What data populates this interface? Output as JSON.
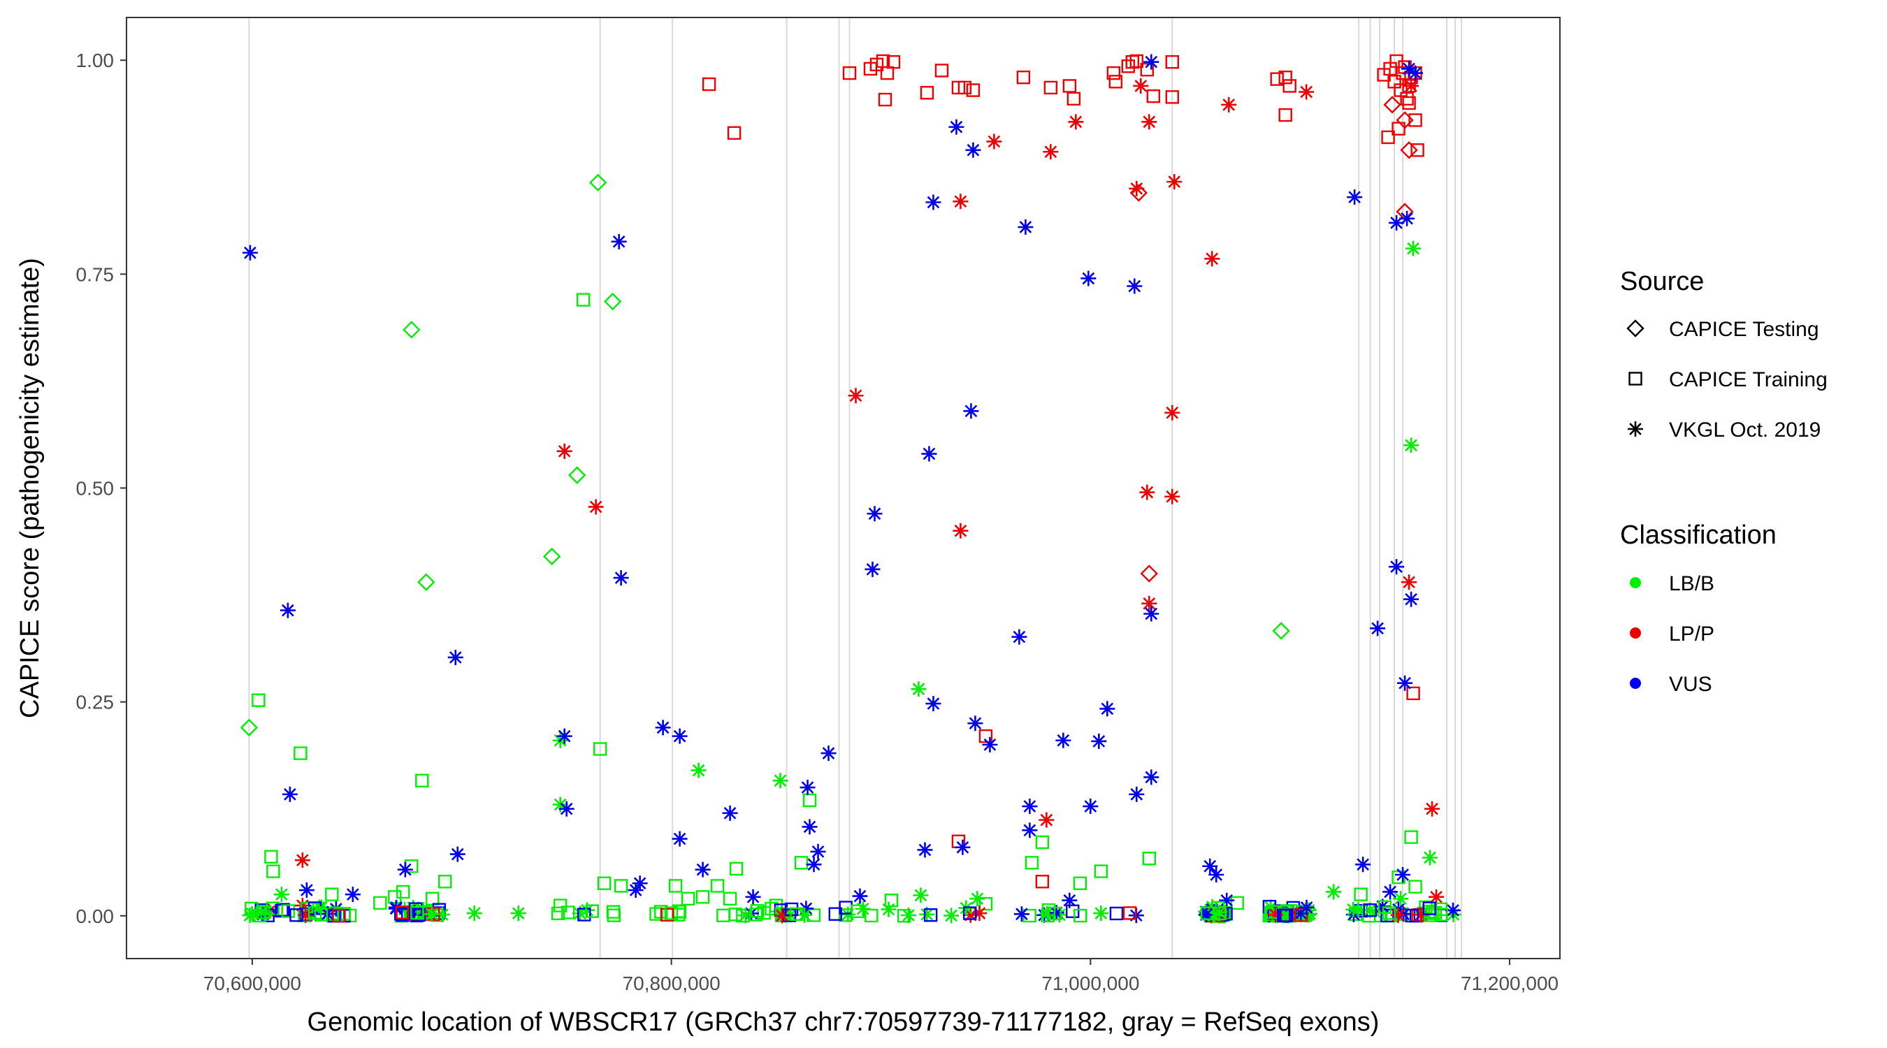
{
  "chart_data": {
    "type": "scatter",
    "title": "",
    "xlabel": "Genomic location of WBSCR17 (GRCh37 chr7:70597739-71177182, gray = RefSeq exons)",
    "ylabel": "CAPICE score (pathogenicity estimate)",
    "xlim": [
      70540000,
      71224000
    ],
    "ylim": [
      -0.05,
      1.05
    ],
    "x_ticks": [
      70600000,
      70800000,
      71000000,
      71200000
    ],
    "x_tick_labels": [
      "70,600,000",
      "70,800,000",
      "71,000,000",
      "71,200,000"
    ],
    "y_ticks": [
      0,
      0.25,
      0.5,
      0.75,
      1.0
    ],
    "y_tick_labels": [
      "0.00",
      "0.25",
      "0.50",
      "0.75",
      "1.00"
    ],
    "exon_positions": [
      70598500,
      70766000,
      70800500,
      70855000,
      70880000,
      70885000,
      71039000,
      71128000,
      71133500,
      71138000,
      71145000,
      71149000,
      71170000,
      71174000,
      71177000
    ],
    "legend": {
      "source_title": "Source",
      "source_items": [
        {
          "label": "CAPICE Testing",
          "shape": "diamond"
        },
        {
          "label": "CAPICE Training",
          "shape": "square"
        },
        {
          "label": "VKGL Oct. 2019",
          "shape": "asterisk"
        }
      ],
      "class_title": "Classification",
      "class_items": [
        {
          "label": "LB/B",
          "color": "#00ee00"
        },
        {
          "label": "LP/P",
          "color": "#ee0000"
        },
        {
          "label": "VUS",
          "color": "#0000ee"
        }
      ]
    },
    "colors": {
      "LB/B": "#00ee00",
      "LP/P": "#ee0000",
      "VUS": "#0000ee"
    },
    "series": [
      {
        "name": "CAPICE Testing LB/B",
        "shape": "diamond",
        "class": "LB/B",
        "x": [
          70598500,
          70676000,
          70683000,
          70743000,
          70755000,
          70765000,
          70772000,
          71091000
        ],
        "y": [
          0.22,
          0.685,
          0.39,
          0.42,
          0.515,
          0.857,
          0.718,
          0.333
        ]
      },
      {
        "name": "CAPICE Testing LP/P",
        "shape": "diamond",
        "class": "LP/P",
        "x": [
          71023000,
          71028000,
          71144000,
          71150000,
          71152000,
          71150000
        ],
        "y": [
          0.845,
          0.4,
          0.948,
          0.93,
          0.895,
          0.823
        ]
      },
      {
        "name": "CAPICE Training LB/B",
        "shape": "square",
        "class": "LB/B",
        "x": [
          70603000,
          70609000,
          70610000,
          70623000,
          70638000,
          70661000,
          70668000,
          70672000,
          70676000,
          70681000,
          70686000,
          70692000,
          70747000,
          70758000,
          70766000,
          70768000,
          70776000,
          70802000,
          70808000,
          70815000,
          70822000,
          70828000,
          70831000,
          70850000,
          70862000,
          70866000,
          70905000,
          70950000,
          70972000,
          70977000,
          70995000,
          71005000,
          71028000,
          71070000,
          71129000,
          71147000,
          71153000,
          71155000,
          71160000
        ],
        "y": [
          0.252,
          0.069,
          0.052,
          0.19,
          0.025,
          0.015,
          0.022,
          0.028,
          0.058,
          0.158,
          0.02,
          0.04,
          0.012,
          0.72,
          0.195,
          0.038,
          0.035,
          0.035,
          0.02,
          0.022,
          0.035,
          0.02,
          0.055,
          0.012,
          0.062,
          0.135,
          0.018,
          0.014,
          0.062,
          0.086,
          0.038,
          0.052,
          0.067,
          0.015,
          0.025,
          0.045,
          0.092,
          0.034,
          0.01
        ]
      },
      {
        "name": "CAPICE Training LP/P",
        "shape": "square",
        "class": "LP/P",
        "x": [
          70818000,
          70830000,
          70885000,
          70895000,
          70898000,
          70901000,
          70902000,
          70903000,
          70906000,
          70922000,
          70929000,
          70937000,
          70940000,
          70944000,
          70937000,
          70950000,
          70968000,
          70977000,
          70981000,
          70990000,
          70992000,
          71011000,
          71012000,
          71018000,
          71020000,
          71022000,
          71027000,
          71030000,
          71039000,
          71039000,
          71089000,
          71093000,
          71093000,
          71095000,
          71140000,
          71143000,
          71145000,
          71146000,
          71148000,
          71149000,
          71150000,
          71152000,
          71153000,
          71155000,
          71156000,
          71154000,
          71151000,
          71155000,
          71152000,
          71142000,
          71147000
        ],
        "y": [
          0.972,
          0.915,
          0.985,
          0.99,
          0.995,
          0.999,
          0.954,
          0.985,
          0.998,
          0.962,
          0.988,
          0.968,
          0.968,
          0.965,
          0.087,
          0.21,
          0.98,
          0.04,
          0.968,
          0.97,
          0.955,
          0.985,
          0.975,
          0.993,
          0.998,
          0.999,
          0.989,
          0.958,
          0.998,
          0.957,
          0.978,
          0.936,
          0.98,
          0.97,
          0.983,
          0.99,
          0.975,
          0.999,
          0.965,
          0.985,
          0.992,
          0.97,
          0.98,
          0.93,
          0.895,
          0.26,
          0.955,
          0.985,
          0.95,
          0.91,
          0.92
        ]
      },
      {
        "name": "VKGL LB/B",
        "shape": "asterisk",
        "class": "LB/B",
        "x": [
          70614000,
          70632000,
          70706000,
          70727000,
          70747000,
          70747000,
          70813000,
          70852000,
          70918000,
          70919000,
          70946000,
          71055000,
          71086000,
          71116000,
          71148000,
          71154000,
          71153000,
          71162000,
          71005000
        ],
        "y": [
          0.025,
          0.01,
          0.003,
          0.003,
          0.205,
          0.13,
          0.17,
          0.158,
          0.265,
          0.024,
          0.02,
          0.005,
          0.01,
          0.028,
          0.02,
          0.78,
          0.55,
          0.068,
          0.003
        ]
      },
      {
        "name": "VKGL LP/P",
        "shape": "asterisk",
        "class": "LP/P",
        "x": [
          70608000,
          70624000,
          70624000,
          70749000,
          70764000,
          70888000,
          70938000,
          70938000,
          70954000,
          70947000,
          70979000,
          70981000,
          70993000,
          71022000,
          71024000,
          71028000,
          71027000,
          71028000,
          71039000,
          71039000,
          71040000,
          71058000,
          71066000,
          71103000,
          71152000,
          71163000,
          71165000,
          71153000
        ],
        "y": [
          0.005,
          0.065,
          0.012,
          0.543,
          0.478,
          0.608,
          0.835,
          0.45,
          0.905,
          0.003,
          0.112,
          0.893,
          0.928,
          0.85,
          0.97,
          0.928,
          0.495,
          0.365,
          0.588,
          0.49,
          0.858,
          0.768,
          0.948,
          0.963,
          0.39,
          0.125,
          0.022,
          0.97
        ]
      },
      {
        "name": "VKGL VUS",
        "shape": "asterisk",
        "class": "VUS",
        "x": [
          70599000,
          70617000,
          70618000,
          70626000,
          70648000,
          70673000,
          70697000,
          70698000,
          70749000,
          70750000,
          70775000,
          70776000,
          70785000,
          70796000,
          70804000,
          70804000,
          70815000,
          70828000,
          70839000,
          70865000,
          70866000,
          70868000,
          70870000,
          70875000,
          70890000,
          70896000,
          70897000,
          70921000,
          70923000,
          70925000,
          70925000,
          70936000,
          70939000,
          70943000,
          70944000,
          70945000,
          70952000,
          70966000,
          70969000,
          70971000,
          70971000,
          70987000,
          70999000,
          71000000,
          71004000,
          71008000,
          71021000,
          71022000,
          71029000,
          71029000,
          71029000,
          71057000,
          71060000,
          71065000,
          71126000,
          71130000,
          71137000,
          71146000,
          71146000,
          71150000,
          71151000,
          71153000,
          71155000,
          71149000,
          71152000,
          71143000,
          70783000,
          70640000,
          70990000
        ],
        "y": [
          0.775,
          0.357,
          0.142,
          0.03,
          0.025,
          0.054,
          0.302,
          0.072,
          0.21,
          0.125,
          0.788,
          0.395,
          0.038,
          0.22,
          0.21,
          0.09,
          0.054,
          0.12,
          0.022,
          0.15,
          0.104,
          0.06,
          0.075,
          0.19,
          0.023,
          0.405,
          0.47,
          0.077,
          0.54,
          0.248,
          0.834,
          0.922,
          0.08,
          0.59,
          0.895,
          0.225,
          0.2,
          0.326,
          0.805,
          0.1,
          0.128,
          0.205,
          0.745,
          0.128,
          0.204,
          0.242,
          0.736,
          0.142,
          0.353,
          0.162,
          0.998,
          0.058,
          0.048,
          0.018,
          0.84,
          0.06,
          0.336,
          0.81,
          0.408,
          0.272,
          0.815,
          0.37,
          0.985,
          0.048,
          0.99,
          0.028,
          0.03,
          0.008,
          0.018
        ]
      }
    ]
  }
}
